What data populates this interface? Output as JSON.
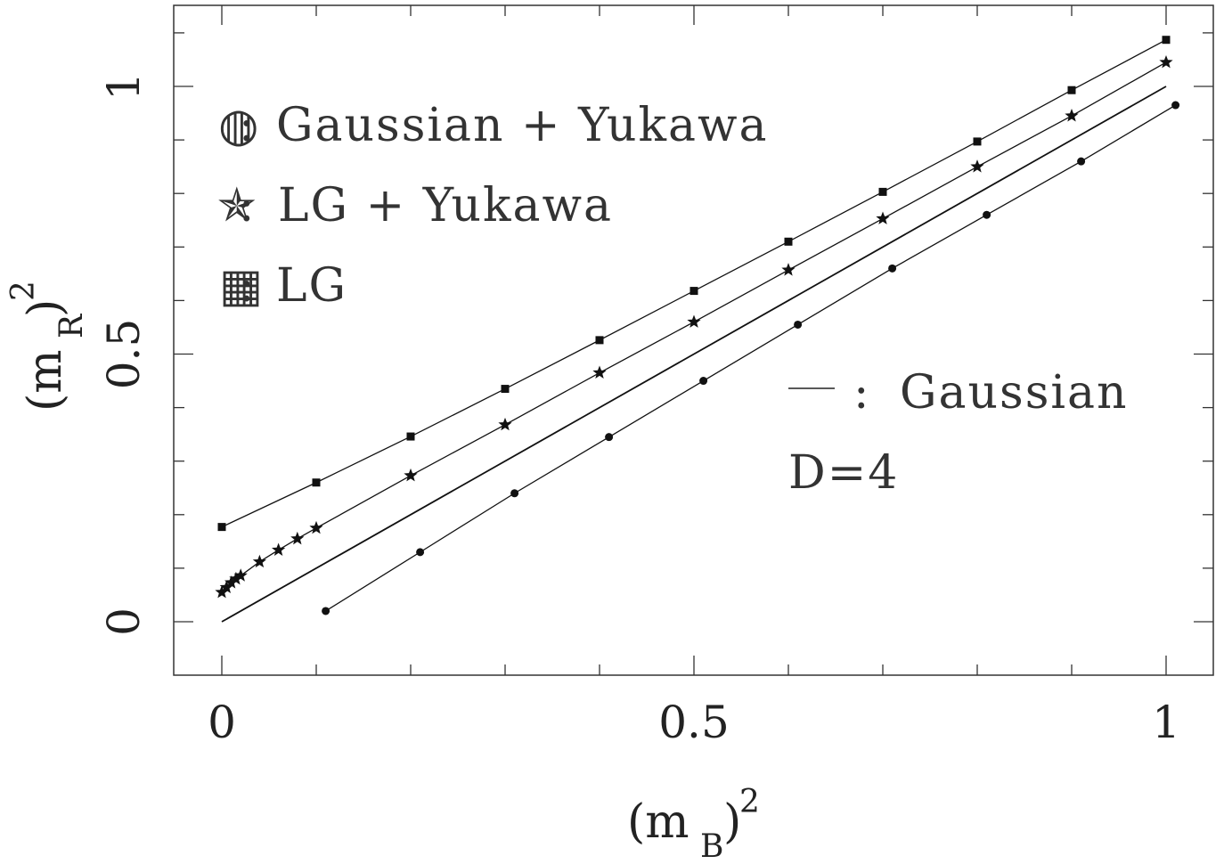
{
  "chart_data": {
    "type": "line",
    "xlabel_base": "(m",
    "xlabel_sub": "B",
    "xlabel_tail": ")",
    "xlabel_sup": "2",
    "ylabel_base": "(m",
    "ylabel_sub": "R",
    "ylabel_tail": ")",
    "ylabel_sup": "2",
    "xlim": [
      -0.05,
      1.05
    ],
    "ylim": [
      -0.1,
      1.15
    ],
    "x_ticks": [
      {
        "value": 0,
        "label": "0"
      },
      {
        "value": 0.5,
        "label": "0.5"
      },
      {
        "value": 1,
        "label": "1"
      }
    ],
    "y_ticks": [
      {
        "value": 0,
        "label": "0"
      },
      {
        "value": 0.5,
        "label": "0.5"
      },
      {
        "value": 1,
        "label": "1"
      }
    ],
    "series": [
      {
        "name": "Gaussian + Yukawa",
        "marker": "circle",
        "x": [
          0.11,
          0.21,
          0.31,
          0.41,
          0.51,
          0.61,
          0.71,
          0.81,
          0.91,
          1.01
        ],
        "y": [
          0.02,
          0.13,
          0.24,
          0.345,
          0.45,
          0.555,
          0.66,
          0.76,
          0.86,
          0.965
        ]
      },
      {
        "name": "LG + Yukawa",
        "marker": "star",
        "x": [
          0.0,
          0.005,
          0.01,
          0.015,
          0.02,
          0.04,
          0.06,
          0.08,
          0.1,
          0.2,
          0.3,
          0.4,
          0.5,
          0.6,
          0.7,
          0.8,
          0.9,
          1.0
        ],
        "y": [
          0.055,
          0.064,
          0.073,
          0.08,
          0.086,
          0.112,
          0.134,
          0.155,
          0.175,
          0.273,
          0.368,
          0.465,
          0.56,
          0.657,
          0.753,
          0.85,
          0.945,
          1.045
        ],
        "symbol_label": "★"
      },
      {
        "name": "LG",
        "marker": "square",
        "x": [
          0.0,
          0.1,
          0.2,
          0.3,
          0.4,
          0.5,
          0.6,
          0.7,
          0.8,
          0.9,
          1.0
        ],
        "y": [
          0.177,
          0.26,
          0.346,
          0.435,
          0.526,
          0.618,
          0.71,
          0.803,
          0.897,
          0.993,
          1.087
        ]
      },
      {
        "name": "Gaussian",
        "marker": "none",
        "x": [
          0.0,
          1.0
        ],
        "y": [
          0.0,
          1.0
        ]
      }
    ],
    "legend": [
      {
        "symbol": "◍",
        "sep": ":",
        "text": "Gaussian + Yukawa"
      },
      {
        "symbol": "✯",
        "sep": ":",
        "text": "LG + Yukawa"
      },
      {
        "symbol": "▦",
        "sep": ":",
        "text": "LG"
      }
    ],
    "gaussian_legend": {
      "sep": ":",
      "text": "Gaussian"
    },
    "annotation": "D=4"
  }
}
